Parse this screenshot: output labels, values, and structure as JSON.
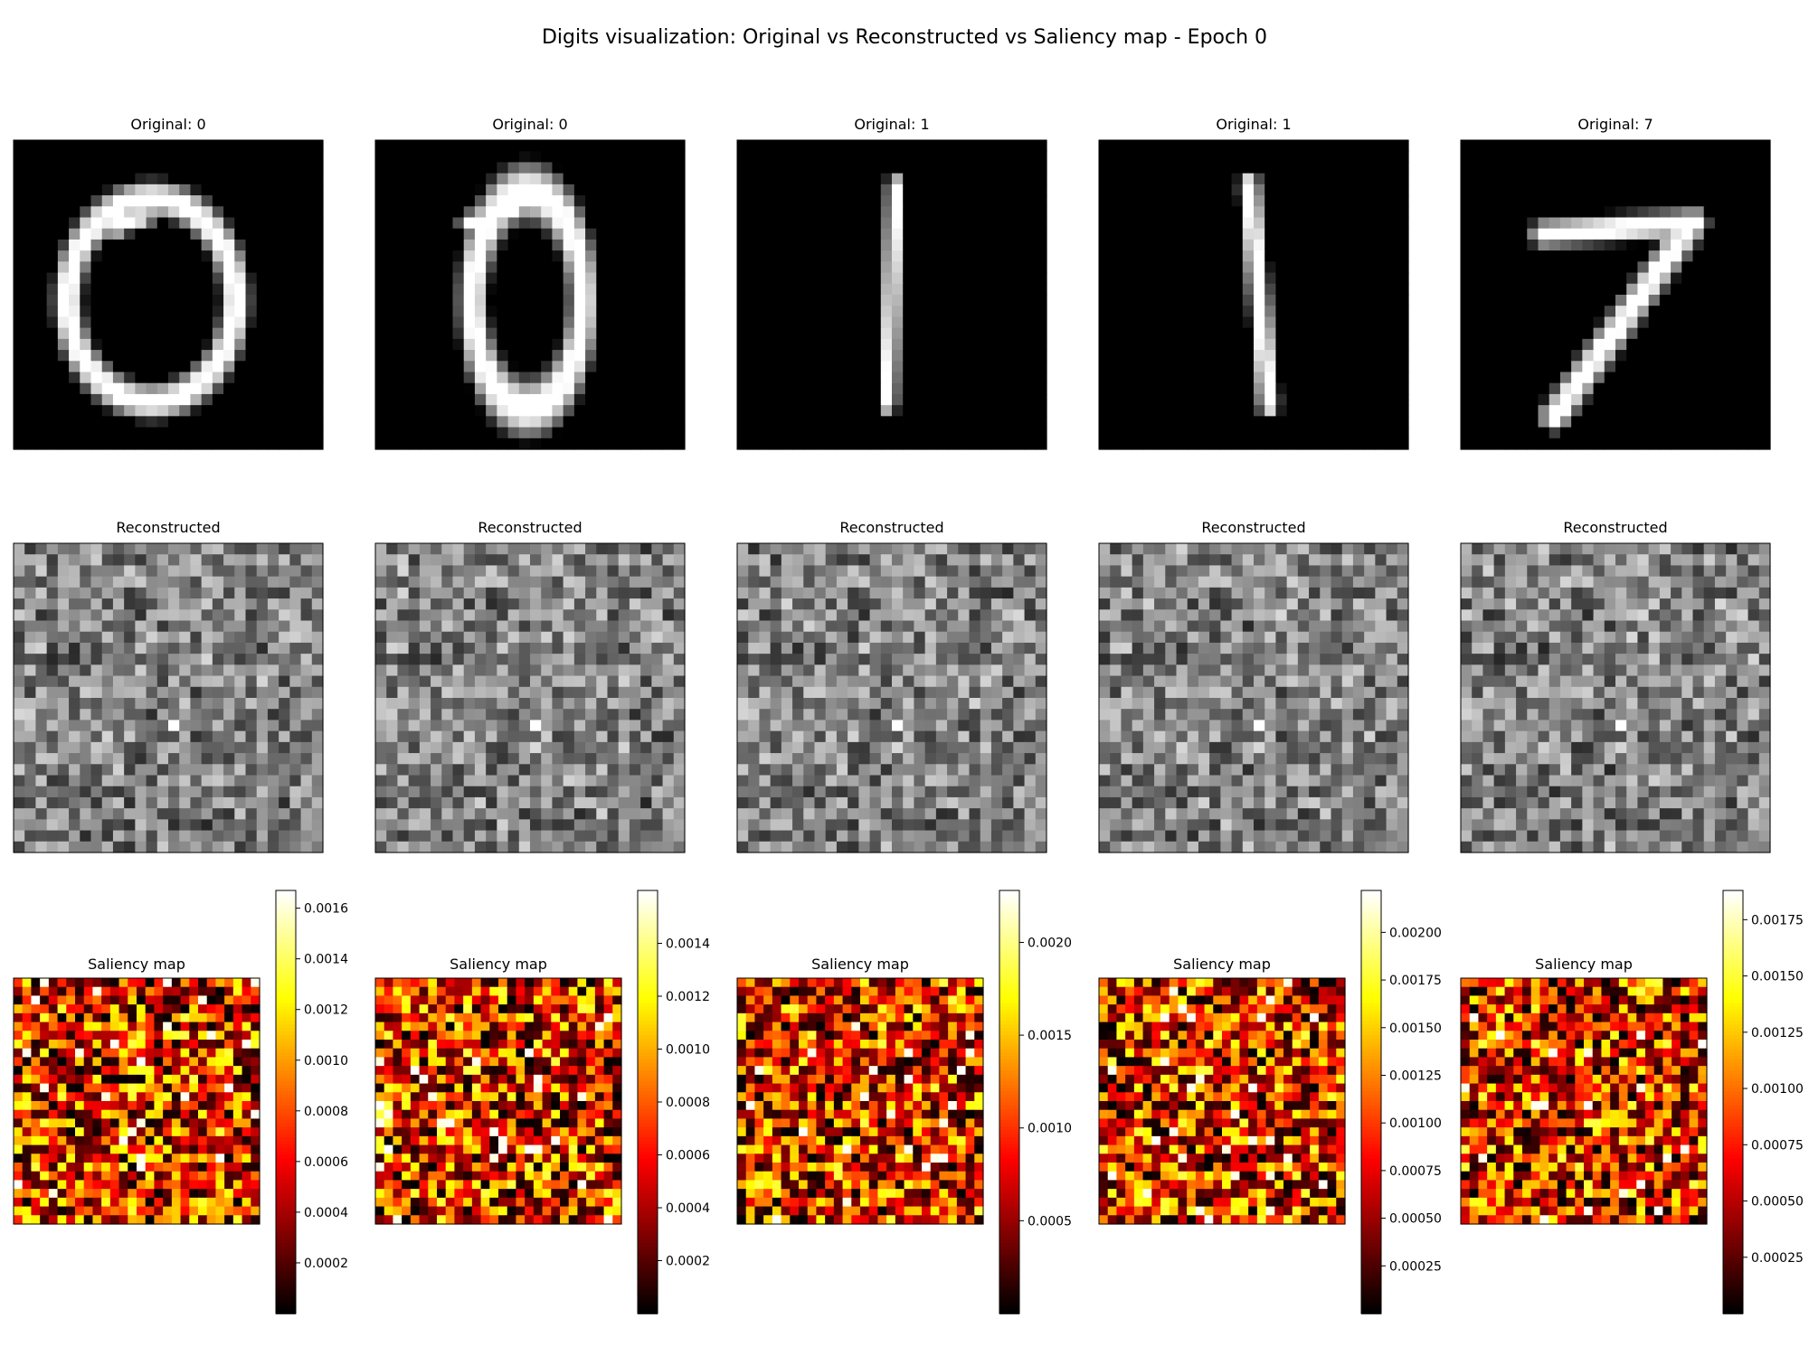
{
  "title": "Digits visualization: Original vs Reconstructed vs Saliency map - Epoch 0",
  "chart_data": {
    "type": "heatmap",
    "image_grid_size": [
      28,
      28
    ],
    "rows": [
      "original",
      "reconstructed",
      "saliency"
    ],
    "original_colormap": "gray",
    "reconstructed_colormap": "gray",
    "saliency_colormap": "hot",
    "reconstructed_title": "Reconstructed",
    "saliency_title": "Saliency map",
    "panels": [
      {
        "original_title": "Original: 0",
        "digit": "0",
        "saliency_range": [
          0.0,
          0.00167
        ],
        "colorbar_ticks": [
          "0.0002",
          "0.0004",
          "0.0006",
          "0.0008",
          "0.0010",
          "0.0012",
          "0.0014",
          "0.0016"
        ],
        "colorbar_tick_values": [
          0.0002,
          0.0004,
          0.0006,
          0.0008,
          0.001,
          0.0012,
          0.0014,
          0.0016
        ]
      },
      {
        "original_title": "Original: 0",
        "digit": "0",
        "saliency_range": [
          0.0,
          0.0016
        ],
        "colorbar_ticks": [
          "0.0002",
          "0.0004",
          "0.0006",
          "0.0008",
          "0.0010",
          "0.0012",
          "0.0014"
        ],
        "colorbar_tick_values": [
          0.0002,
          0.0004,
          0.0006,
          0.0008,
          0.001,
          0.0012,
          0.0014
        ]
      },
      {
        "original_title": "Original: 1",
        "digit": "1",
        "saliency_range": [
          0.0,
          0.00228
        ],
        "colorbar_ticks": [
          "0.0005",
          "0.0010",
          "0.0015",
          "0.0020"
        ],
        "colorbar_tick_values": [
          0.0005,
          0.001,
          0.0015,
          0.002
        ]
      },
      {
        "original_title": "Original: 1",
        "digit": "1",
        "saliency_range": [
          0.0,
          0.00222
        ],
        "colorbar_ticks": [
          "0.00025",
          "0.00050",
          "0.00075",
          "0.00100",
          "0.00125",
          "0.00150",
          "0.00175",
          "0.00200"
        ],
        "colorbar_tick_values": [
          0.00025,
          0.0005,
          0.00075,
          0.001,
          0.00125,
          0.0015,
          0.00175,
          0.002
        ]
      },
      {
        "original_title": "Original: 7",
        "digit": "7",
        "saliency_range": [
          0.0,
          0.00188
        ],
        "colorbar_ticks": [
          "0.00025",
          "0.00050",
          "0.00075",
          "0.00100",
          "0.00125",
          "0.00150",
          "0.00175"
        ],
        "colorbar_tick_values": [
          0.00025,
          0.0005,
          0.00075,
          0.001,
          0.00125,
          0.0015,
          0.00175
        ]
      }
    ]
  }
}
